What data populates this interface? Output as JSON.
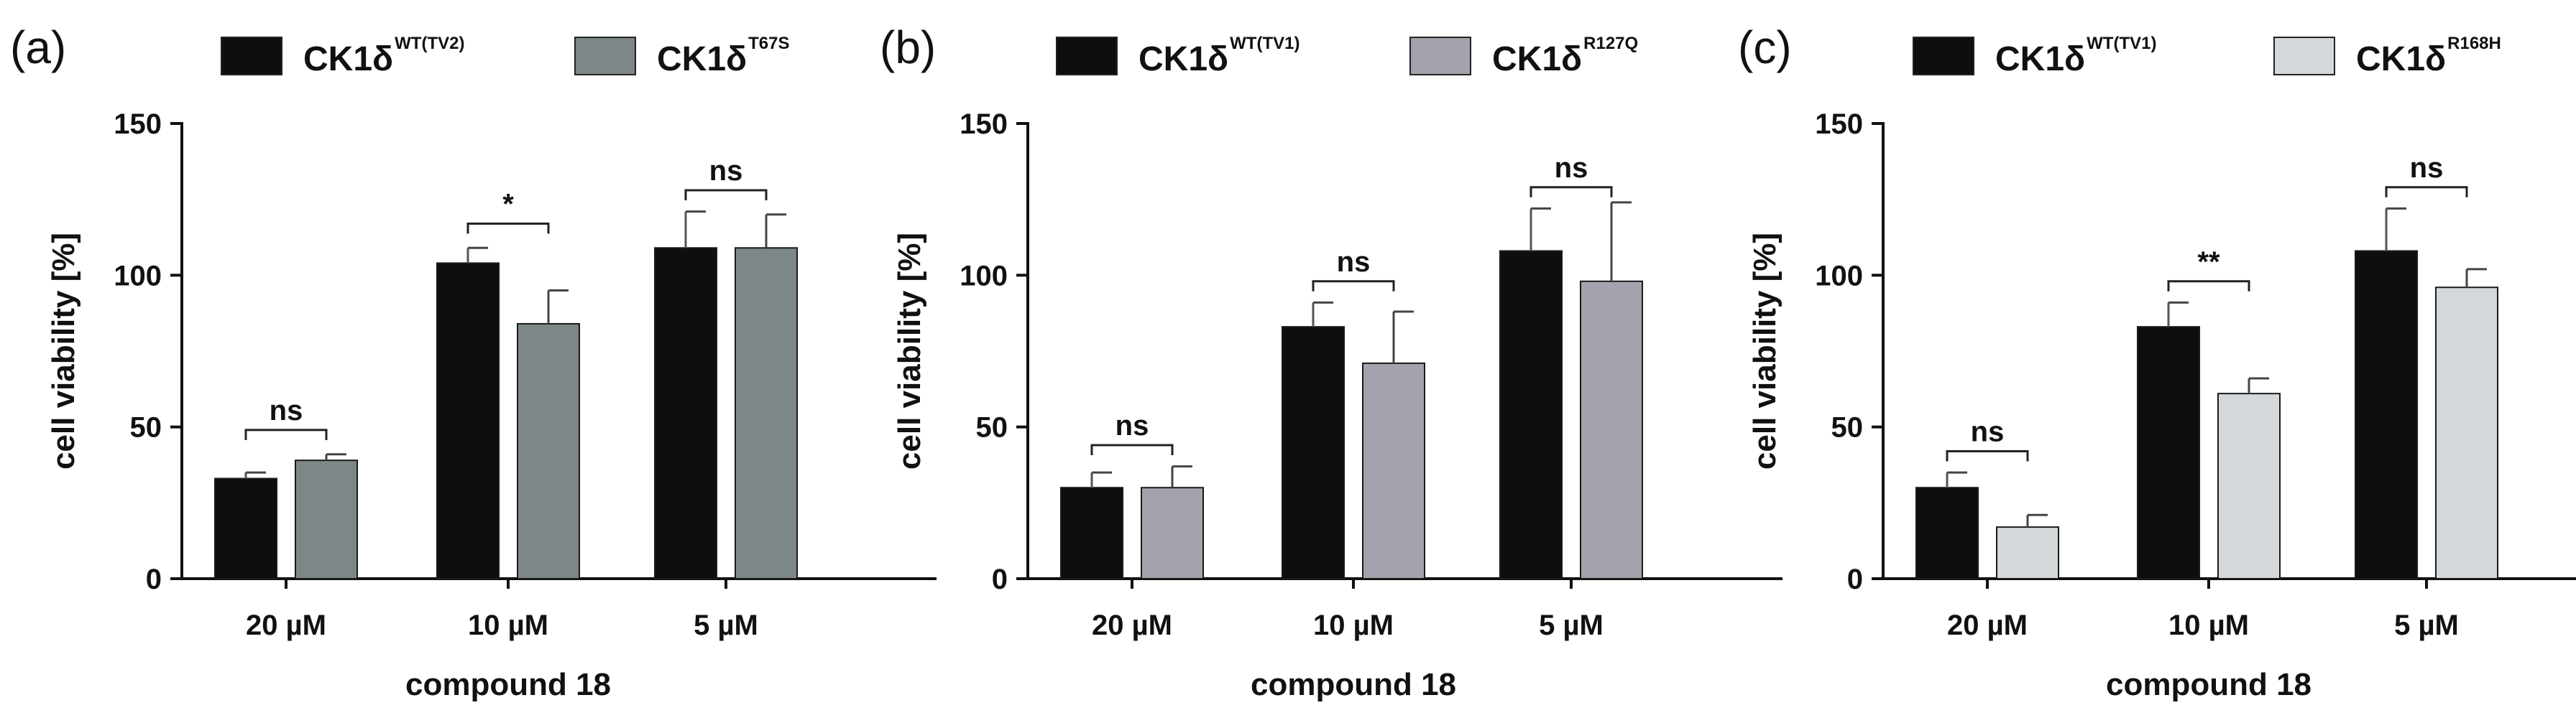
{
  "chart_data": [
    {
      "type": "bar",
      "panel_label": "(a)",
      "title": "",
      "categories": [
        "20 µM",
        "10 µM",
        "5 µM"
      ],
      "xlabel": "compound 18",
      "ylabel": "cell viability [%]",
      "ylim": [
        0,
        150
      ],
      "yticks": [
        "0",
        "50",
        "100",
        "150"
      ],
      "series": [
        {
          "name": "CK1δ",
          "sup": "WT(TV2)",
          "color": "#0e0e0e",
          "values": [
            33,
            104,
            109
          ],
          "errors": [
            2,
            5,
            12
          ]
        },
        {
          "name": "CK1δ",
          "sup": "T67S",
          "color": "#7e8788",
          "values": [
            39,
            84,
            109
          ],
          "errors": [
            2,
            11,
            11
          ]
        }
      ],
      "significance": [
        {
          "category": 0,
          "label": "ns",
          "y": 49
        },
        {
          "category": 1,
          "label": "*",
          "y": 117
        },
        {
          "category": 2,
          "label": "ns",
          "y": 128
        }
      ]
    },
    {
      "type": "bar",
      "panel_label": "(b)",
      "title": "",
      "categories": [
        "20 µM",
        "10 µM",
        "5 µM"
      ],
      "xlabel": "compound 18",
      "ylabel": "cell viability [%]",
      "ylim": [
        0,
        150
      ],
      "yticks": [
        "0",
        "50",
        "100",
        "150"
      ],
      "series": [
        {
          "name": "CK1δ",
          "sup": "WT(TV1)",
          "color": "#0e0e0e",
          "values": [
            30,
            83,
            108
          ],
          "errors": [
            5,
            8,
            14
          ]
        },
        {
          "name": "CK1δ",
          "sup": "R127Q",
          "color": "#a2a3ac",
          "values": [
            30,
            71,
            98
          ],
          "errors": [
            7,
            17,
            26
          ]
        }
      ],
      "significance": [
        {
          "category": 0,
          "label": "ns",
          "y": 44
        },
        {
          "category": 1,
          "label": "ns",
          "y": 98
        },
        {
          "category": 2,
          "label": "ns",
          "y": 129
        }
      ]
    },
    {
      "type": "bar",
      "panel_label": "(c)",
      "title": "",
      "categories": [
        "20 µM",
        "10 µM",
        "5 µM"
      ],
      "xlabel": "compound 18",
      "ylabel": "cell viability [%]",
      "ylim": [
        0,
        150
      ],
      "yticks": [
        "0",
        "50",
        "100",
        "150"
      ],
      "series": [
        {
          "name": "CK1δ",
          "sup": "WT(TV1)",
          "color": "#0e0e0e",
          "values": [
            30,
            83,
            108
          ],
          "errors": [
            5,
            8,
            14
          ]
        },
        {
          "name": "CK1δ",
          "sup": "R168H",
          "color": "#d5d8da",
          "values": [
            17,
            61,
            96
          ],
          "errors": [
            4,
            5,
            6
          ]
        }
      ],
      "significance": [
        {
          "category": 0,
          "label": "ns",
          "y": 42
        },
        {
          "category": 1,
          "label": "**",
          "y": 98
        },
        {
          "category": 2,
          "label": "ns",
          "y": 129
        }
      ]
    }
  ]
}
